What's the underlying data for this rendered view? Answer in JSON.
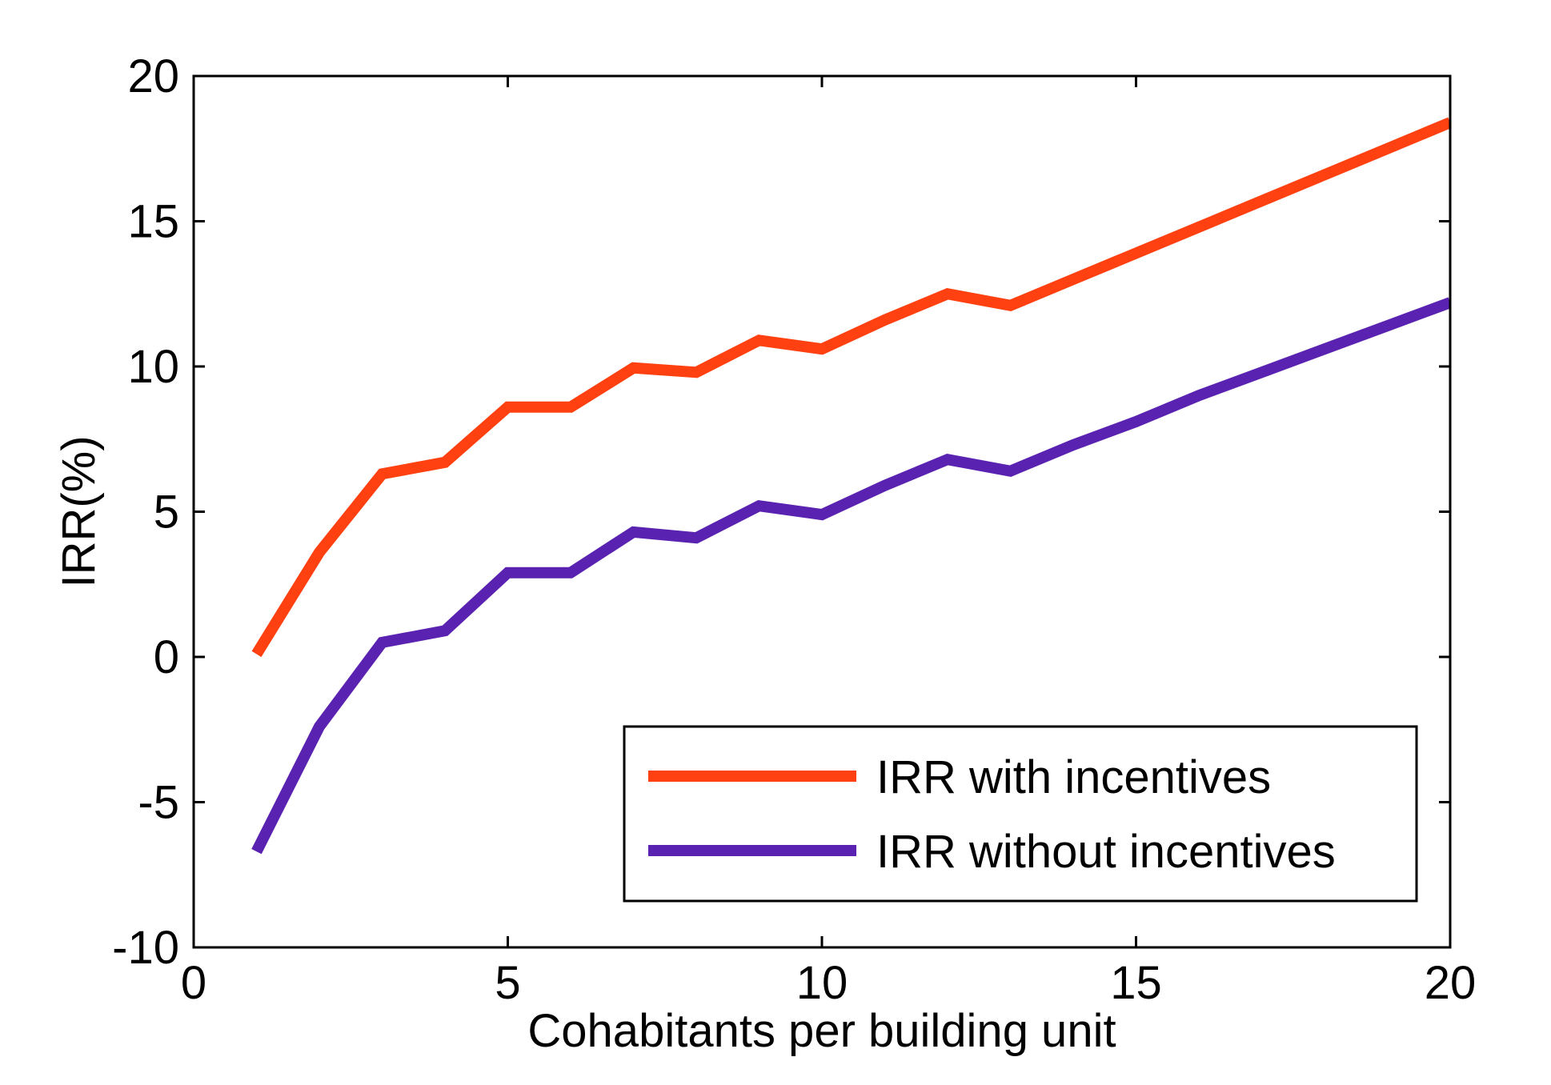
{
  "chart_data": {
    "type": "line",
    "title": "",
    "xlabel": "Cohabitants per building unit",
    "ylabel": "IRR(%)",
    "xlim": [
      0,
      20
    ],
    "ylim": [
      -10,
      20
    ],
    "xticks": [
      0,
      5,
      10,
      15,
      20
    ],
    "yticks": [
      -10,
      -5,
      0,
      5,
      10,
      15,
      20
    ],
    "xtick_labels": [
      "0",
      "5",
      "10",
      "15",
      "20"
    ],
    "ytick_labels": [
      "-10",
      "-5",
      "0",
      "5",
      "10",
      "15",
      "20"
    ],
    "grid": false,
    "legend_position": "bottom-right",
    "x": [
      1,
      2,
      3,
      4,
      5,
      6,
      7,
      8,
      9,
      10,
      11,
      12,
      13,
      14,
      15,
      16,
      17,
      18,
      19,
      20
    ],
    "series": [
      {
        "name": "IRR with incentives",
        "color": "#ff4010",
        "values": [
          0.1,
          3.6,
          6.3,
          6.7,
          8.6,
          8.6,
          9.95,
          9.8,
          10.9,
          10.6,
          11.6,
          12.5,
          12.1,
          13.0,
          13.9,
          14.8,
          15.7,
          16.6,
          17.5,
          18.4
        ]
      },
      {
        "name": "IRR without incentives",
        "color": "#5a22b0",
        "values": [
          -6.7,
          -2.4,
          0.5,
          0.9,
          2.9,
          2.9,
          4.3,
          4.1,
          5.2,
          4.9,
          5.9,
          6.8,
          6.4,
          7.3,
          8.1,
          9.0,
          9.8,
          10.6,
          11.4,
          12.2
        ]
      }
    ]
  }
}
